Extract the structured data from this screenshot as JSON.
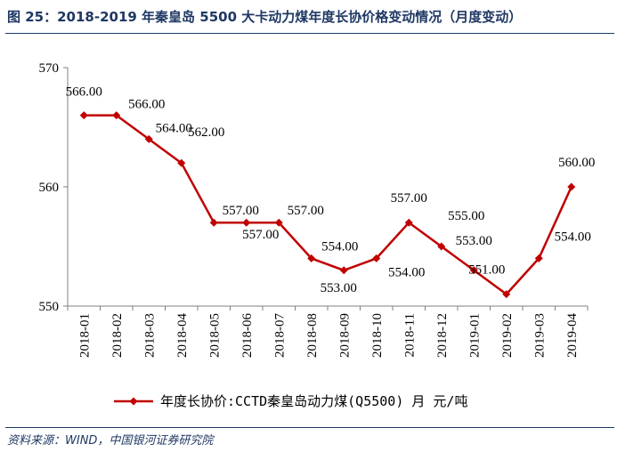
{
  "figure": {
    "title": "图 25：2018-2019 年秦皇岛 5500 大卡动力煤年度长协价格变动情况（月度变动）",
    "source": "资料来源：WIND，中国银河证券研究院"
  },
  "colors": {
    "series": "#c00000",
    "axis": "#808080",
    "heading": "#1f3864"
  },
  "chart_data": {
    "type": "line",
    "categories": [
      "2018-01",
      "2018-02",
      "2018-03",
      "2018-04",
      "2018-05",
      "2018-06",
      "2018-07",
      "2018-08",
      "2018-09",
      "2018-10",
      "2018-11",
      "2018-12",
      "2019-01",
      "2019-02",
      "2019-03",
      "2019-04"
    ],
    "series": [
      {
        "name": "年度长协价:CCTD秦皇岛动力煤(Q5500)  月  元/吨",
        "values": [
          566,
          566,
          564,
          562,
          557,
          557,
          557,
          554,
          553,
          554,
          557,
          555,
          553,
          551,
          554,
          560
        ],
        "data_labels": [
          "566.00",
          "566.00",
          "564.00",
          "562.00",
          "557.00",
          "557.00",
          "557.00",
          "554.00",
          "553.00",
          "554.00",
          "557.00",
          "555.00",
          "553.00",
          "551.00",
          "554.00",
          "560.00"
        ],
        "marker": "diamond"
      }
    ],
    "ylim": [
      550,
      570
    ],
    "yticks": [
      550,
      560,
      570
    ],
    "xlabel": "",
    "ylabel": "",
    "grid": false,
    "legend_position": "bottom"
  }
}
